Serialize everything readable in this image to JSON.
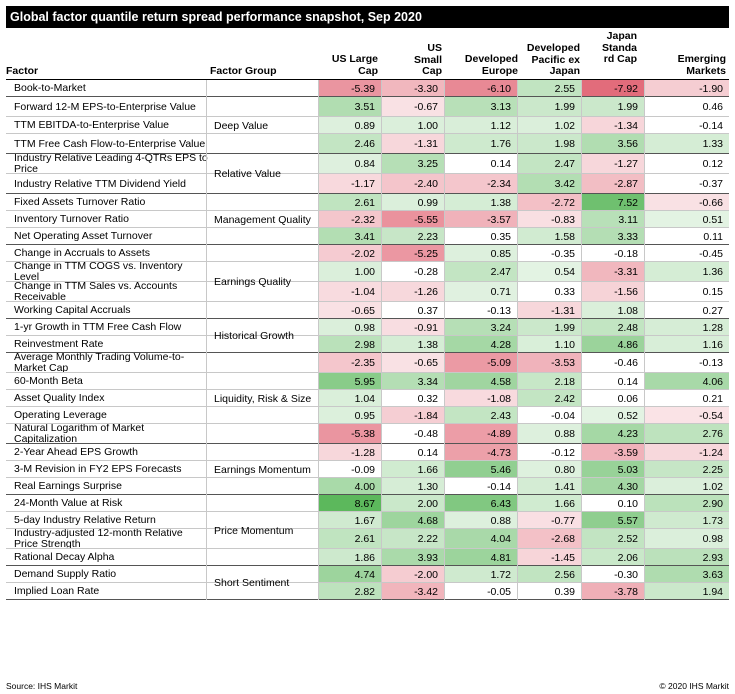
{
  "title": "Global factor quantile return spread performance snapshot, Sep 2020",
  "columns": {
    "factor": "Factor",
    "group": "Factor Group",
    "regions": [
      "US Large Cap",
      "US Small Cap",
      "Developed Europe",
      "Developed Pacific ex Japan",
      "Japan Standard Cap",
      "Emerging Markets"
    ]
  },
  "colors": {
    "positive": "#5cb85c",
    "negative": "#e06070",
    "neutral": "#ffffff"
  },
  "chart_data": {
    "type": "table",
    "title": "Global factor quantile return spread performance snapshot, Sep 2020",
    "columns": [
      "US Large Cap",
      "US Small Cap",
      "Developed Europe",
      "Developed Pacific ex Japan",
      "Japan Standard Cap",
      "Emerging Markets"
    ],
    "groups": [
      {
        "name": "",
        "rows": [
          {
            "factor": "Book-to-Market",
            "values": [
              -5.39,
              -3.3,
              -6.1,
              2.55,
              -7.92,
              -1.9
            ]
          }
        ]
      },
      {
        "name": "Deep Value",
        "rows": [
          {
            "factor": "Forward 12-M EPS-to-Enterprise Value",
            "values": [
              3.51,
              -0.67,
              3.13,
              1.99,
              1.99,
              0.46
            ]
          },
          {
            "factor": "TTM EBITDA-to-Enterprise Value",
            "values": [
              0.89,
              1.0,
              1.12,
              1.02,
              -1.34,
              -0.14
            ]
          },
          {
            "factor": "TTM Free Cash Flow-to-Enterprise Value",
            "values": [
              2.46,
              -1.31,
              1.76,
              1.98,
              3.56,
              1.33
            ]
          }
        ]
      },
      {
        "name": "Relative Value",
        "rows": [
          {
            "factor": "Industry Relative Leading 4-QTRs EPS to Price",
            "values": [
              0.84,
              3.25,
              0.14,
              2.47,
              -1.27,
              0.12
            ]
          },
          {
            "factor": "Industry Relative TTM Dividend Yield",
            "values": [
              -1.17,
              -2.4,
              -2.34,
              3.42,
              -2.87,
              -0.37
            ]
          }
        ]
      },
      {
        "name": "Management Quality",
        "rows": [
          {
            "factor": "Fixed Assets Turnover Ratio",
            "values": [
              2.61,
              0.99,
              1.38,
              -2.72,
              7.52,
              -0.66
            ]
          },
          {
            "factor": "Inventory Turnover Ratio",
            "values": [
              -2.32,
              -5.55,
              -3.57,
              -0.83,
              3.11,
              0.51
            ]
          },
          {
            "factor": "Net Operating Asset Turnover",
            "values": [
              3.41,
              2.23,
              0.35,
              1.58,
              3.33,
              0.11
            ]
          }
        ]
      },
      {
        "name": "Earnings Quality",
        "rows": [
          {
            "factor": "Change in Accruals to Assets",
            "values": [
              -2.02,
              -5.25,
              0.85,
              -0.35,
              -0.18,
              -0.45
            ]
          },
          {
            "factor": "Change in TTM COGS vs. Inventory Level",
            "values": [
              1.0,
              -0.28,
              2.47,
              0.54,
              -3.31,
              1.36
            ]
          },
          {
            "factor": "Change in TTM Sales vs. Accounts Receivable",
            "values": [
              -1.04,
              -1.26,
              0.71,
              0.33,
              -1.56,
              0.15
            ]
          },
          {
            "factor": "Working Capital Accruals",
            "values": [
              -0.65,
              0.37,
              -0.13,
              -1.31,
              1.08,
              0.27
            ]
          }
        ]
      },
      {
        "name": "Historical Growth",
        "rows": [
          {
            "factor": "1-yr Growth in TTM Free Cash Flow",
            "values": [
              0.98,
              -0.91,
              3.24,
              1.99,
              2.48,
              1.28
            ]
          },
          {
            "factor": "Reinvestment Rate",
            "values": [
              2.98,
              1.38,
              4.28,
              1.1,
              4.86,
              1.16
            ]
          }
        ]
      },
      {
        "name": "Liquidity, Risk & Size",
        "rows": [
          {
            "factor": "Average Monthly Trading Volume-to-Market Cap",
            "values": [
              -2.35,
              -0.65,
              -5.09,
              -3.53,
              -0.46,
              -0.13
            ]
          },
          {
            "factor": "60-Month Beta",
            "values": [
              5.95,
              3.34,
              4.58,
              2.18,
              0.14,
              4.06
            ]
          },
          {
            "factor": "Asset Quality Index",
            "values": [
              1.04,
              0.32,
              -1.08,
              2.42,
              0.06,
              0.21
            ]
          },
          {
            "factor": "Operating Leverage",
            "values": [
              0.95,
              -1.84,
              2.43,
              -0.04,
              0.52,
              -0.54
            ]
          },
          {
            "factor": "Natural Logarithm of Market Capitalization",
            "values": [
              -5.38,
              -0.48,
              -4.89,
              0.88,
              4.23,
              2.76
            ]
          }
        ]
      },
      {
        "name": "Earnings Momentum",
        "rows": [
          {
            "factor": "2-Year Ahead EPS Growth",
            "values": [
              -1.28,
              0.14,
              -4.73,
              -0.12,
              -3.59,
              -1.24
            ]
          },
          {
            "factor": "3-M Revision in FY2 EPS Forecasts",
            "values": [
              -0.09,
              1.66,
              5.46,
              0.8,
              5.03,
              2.25
            ]
          },
          {
            "factor": "Real Earnings Surprise",
            "values": [
              4.0,
              1.3,
              -0.14,
              1.41,
              4.3,
              1.02
            ]
          }
        ]
      },
      {
        "name": "Price Momentum",
        "rows": [
          {
            "factor": "24-Month Value at Risk",
            "values": [
              8.67,
              2.0,
              6.43,
              1.66,
              0.1,
              2.9
            ]
          },
          {
            "factor": "5-day Industry Relative Return",
            "values": [
              1.67,
              4.68,
              0.88,
              -0.77,
              5.57,
              1.73
            ]
          },
          {
            "factor": "Industry-adjusted 12-month Relative Price Strength",
            "values": [
              2.61,
              2.22,
              4.04,
              -2.68,
              2.52,
              0.98
            ]
          },
          {
            "factor": "Rational Decay Alpha",
            "values": [
              1.86,
              3.93,
              4.81,
              -1.45,
              2.06,
              2.93
            ]
          }
        ]
      },
      {
        "name": "Short Sentiment",
        "rows": [
          {
            "factor": "Demand Supply Ratio",
            "values": [
              4.74,
              -2.0,
              1.72,
              2.56,
              -0.3,
              3.63
            ]
          },
          {
            "factor": "Implied Loan Rate",
            "values": [
              2.82,
              -3.42,
              -0.05,
              0.39,
              -3.78,
              1.94
            ]
          }
        ]
      }
    ]
  },
  "footer": {
    "source": "Source: IHS Markit",
    "copyright": "© 2020 IHS Markit"
  }
}
